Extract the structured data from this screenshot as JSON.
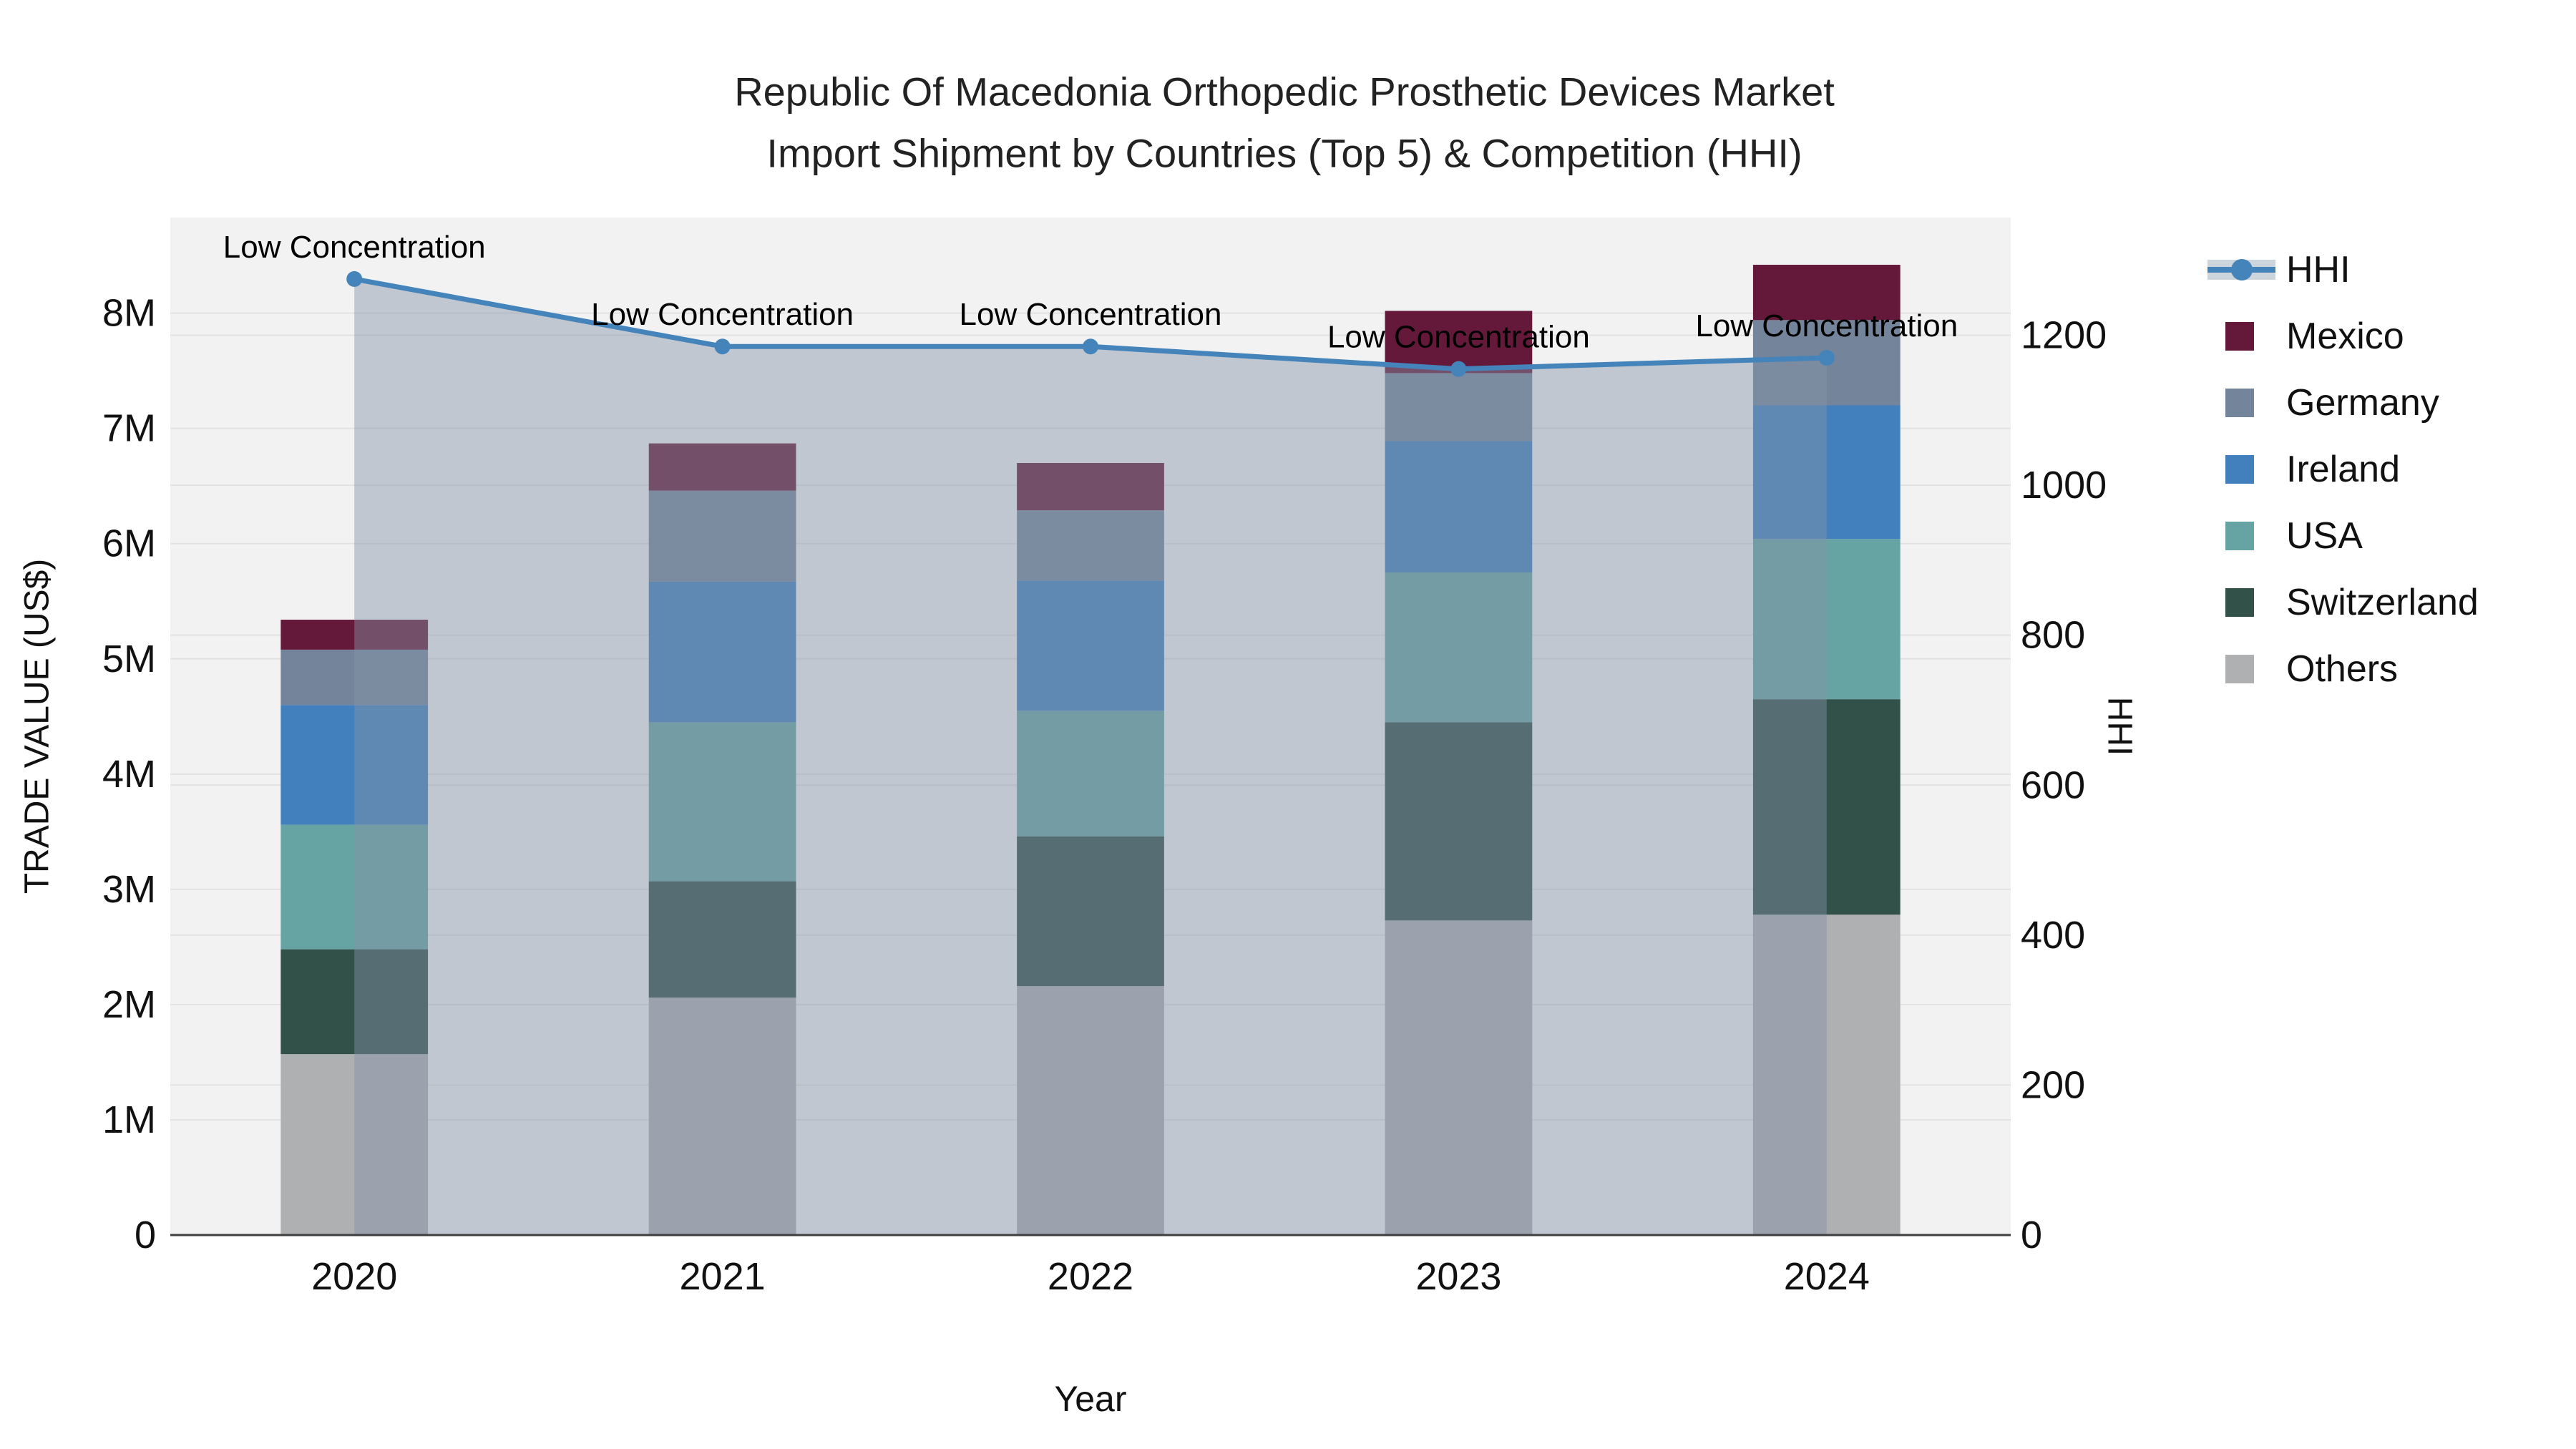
{
  "title": {
    "line1": "Republic Of Macedonia Orthopedic Prosthetic Devices Market",
    "line2": "Import Shipment by Countries (Top 5) & Competition (HHI)"
  },
  "colors": {
    "figure_bg": "#ffffff",
    "plot_bg": "#f2f2f2",
    "gridline": "#e2e2e2",
    "axis_line": "#3f3f3f",
    "tick_label": "#111111",
    "annotation_text": "#000000",
    "hhi_line": "#4484ba",
    "hhi_area_fill": "rgba(133,147,167,0.45)",
    "legend_band": "#ccd4dc"
  },
  "chart_data": {
    "type": "bar",
    "subtype": "stacked-bars-with-secondary-axis-line",
    "categories": [
      "2020",
      "2021",
      "2022",
      "2023",
      "2024"
    ],
    "stack_order_bottom_to_top": [
      "Others",
      "Switzerland",
      "USA",
      "Ireland",
      "Germany",
      "Mexico"
    ],
    "series": [
      {
        "name": "Others",
        "color": "#aeb0b2",
        "values_musd": [
          1.57,
          2.06,
          2.16,
          2.73,
          2.78
        ]
      },
      {
        "name": "Switzerland",
        "color": "#315149",
        "values_musd": [
          0.91,
          1.01,
          1.3,
          1.72,
          1.87
        ]
      },
      {
        "name": "USA",
        "color": "#66a4a3",
        "values_musd": [
          1.08,
          1.38,
          1.09,
          1.3,
          1.39
        ]
      },
      {
        "name": "Ireland",
        "color": "#4180bd",
        "values_musd": [
          1.04,
          1.22,
          1.13,
          1.14,
          1.16
        ]
      },
      {
        "name": "Germany",
        "color": "#74859b",
        "values_musd": [
          0.48,
          0.79,
          0.61,
          0.59,
          0.74
        ]
      },
      {
        "name": "Mexico",
        "color": "#64193a",
        "values_musd": [
          0.26,
          0.41,
          0.41,
          0.54,
          0.48
        ]
      }
    ],
    "bar_totals_musd": [
      5.34,
      6.87,
      6.7,
      8.02,
      8.42
    ],
    "line_series": {
      "name": "HHI",
      "values": [
        1275,
        1185,
        1185,
        1155,
        1170
      ],
      "axis": "right"
    },
    "annotations": [
      {
        "text": "Low Concentration",
        "category": "2020"
      },
      {
        "text": "Low Concentration",
        "category": "2021"
      },
      {
        "text": "Low Concentration",
        "category": "2022"
      },
      {
        "text": "Low Concentration",
        "category": "2023"
      },
      {
        "text": "Low Concentration",
        "category": "2024"
      }
    ],
    "axes": {
      "x": {
        "title": "Year",
        "tick_labels": [
          "2020",
          "2021",
          "2022",
          "2023",
          "2024"
        ]
      },
      "left": {
        "title": "TRADE VALUE (US$)",
        "min": 0,
        "max": 8.83,
        "ticks": [
          {
            "v": 0,
            "label": "0"
          },
          {
            "v": 1,
            "label": "1M"
          },
          {
            "v": 2,
            "label": "2M"
          },
          {
            "v": 3,
            "label": "3M"
          },
          {
            "v": 4,
            "label": "4M"
          },
          {
            "v": 5,
            "label": "5M"
          },
          {
            "v": 6,
            "label": "6M"
          },
          {
            "v": 7,
            "label": "7M"
          },
          {
            "v": 8,
            "label": "8M"
          }
        ]
      },
      "right": {
        "title": "HHI",
        "min": 0,
        "max": 1357,
        "ticks": [
          {
            "v": 0,
            "label": "0"
          },
          {
            "v": 200,
            "label": "200"
          },
          {
            "v": 400,
            "label": "400"
          },
          {
            "v": 600,
            "label": "600"
          },
          {
            "v": 800,
            "label": "800"
          },
          {
            "v": 1000,
            "label": "1000"
          },
          {
            "v": 1200,
            "label": "1200"
          }
        ]
      }
    },
    "legend_position": "right",
    "grid": true,
    "legend": [
      {
        "label": "HHI",
        "kind": "line"
      },
      {
        "label": "Mexico",
        "kind": "swatch",
        "color": "#64193a"
      },
      {
        "label": "Germany",
        "kind": "swatch",
        "color": "#74859b"
      },
      {
        "label": "Ireland",
        "kind": "swatch",
        "color": "#4180bd"
      },
      {
        "label": "USA",
        "kind": "swatch",
        "color": "#66a4a3"
      },
      {
        "label": "Switzerland",
        "kind": "swatch",
        "color": "#315149"
      },
      {
        "label": "Others",
        "kind": "swatch",
        "color": "#aeb0b2"
      }
    ]
  }
}
